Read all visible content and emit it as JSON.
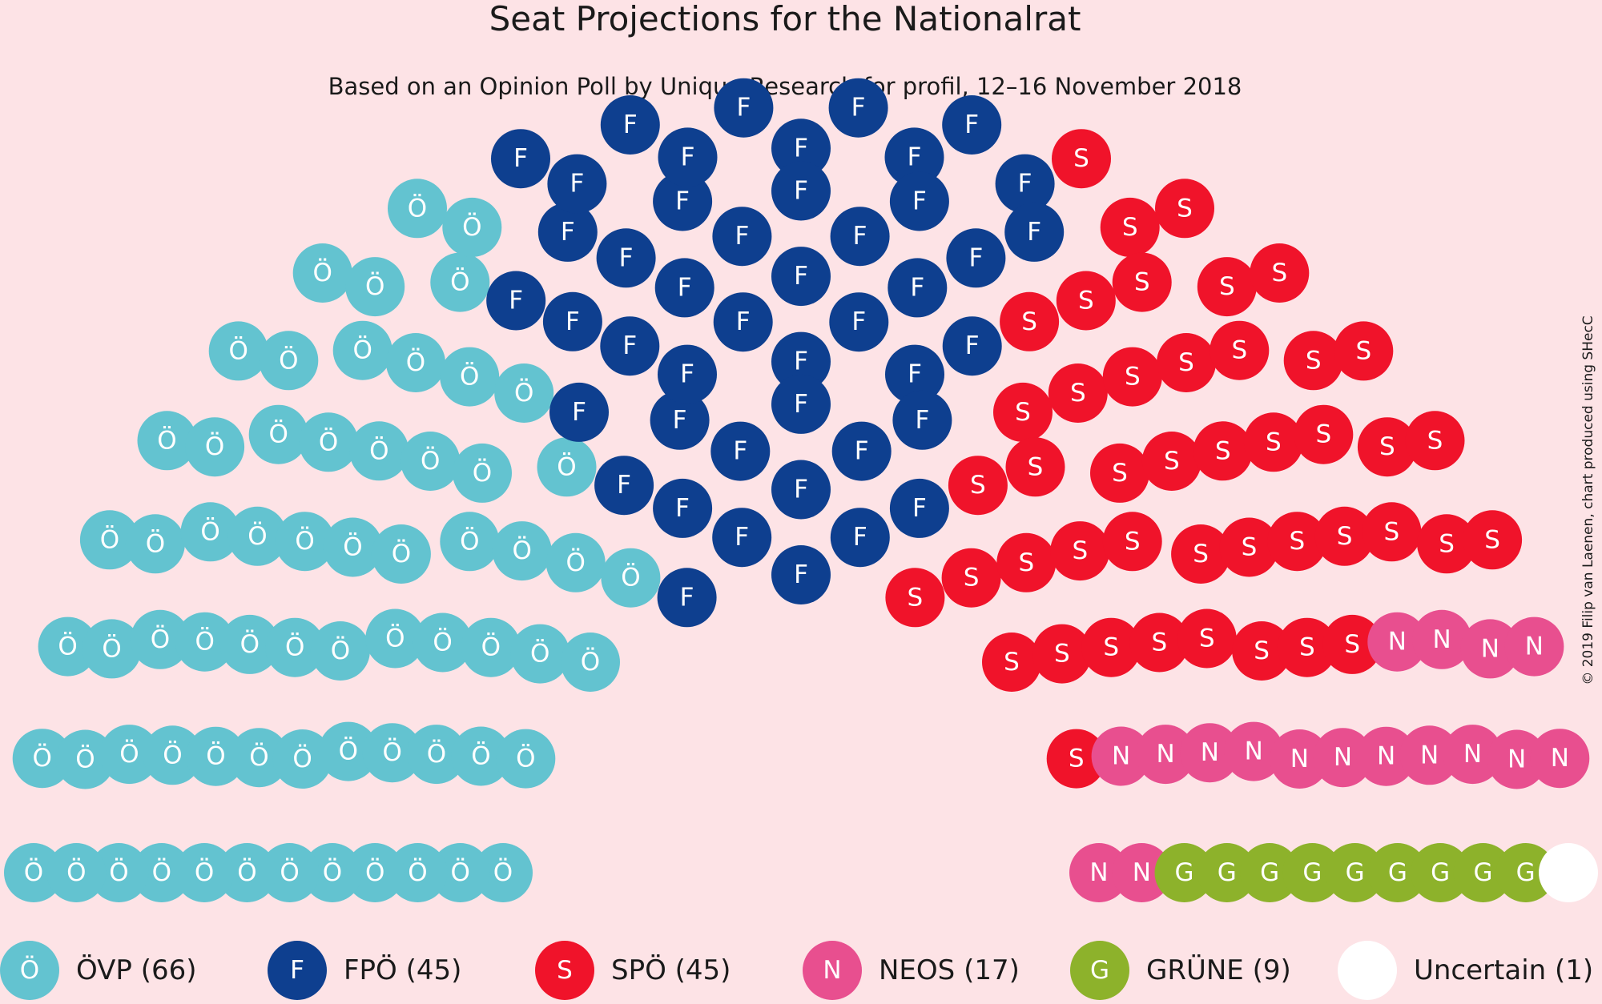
{
  "chart_data": {
    "type": "parliament",
    "title": "Seat Projections for the Nationalrat",
    "subtitle": "Based on an Opinion Poll by Unique Research for profil, 12–16 November 2018",
    "credit": "© 2019 Filip van Laenen, chart produced using SHecC",
    "total_seats": 183,
    "background_color": "#fde3e6",
    "parties": [
      {
        "letter": "Ö",
        "name": "ÖVP",
        "seats": 66,
        "color": "#63c3d0",
        "legend_label": "ÖVP (66)"
      },
      {
        "letter": "F",
        "name": "FPÖ",
        "seats": 45,
        "color": "#0e3f8f",
        "legend_label": "FPÖ (45)"
      },
      {
        "letter": "S",
        "name": "SPÖ",
        "seats": 45,
        "color": "#f0132a",
        "legend_label": "SPÖ (45)"
      },
      {
        "letter": "N",
        "name": "NEOS",
        "seats": 17,
        "color": "#e84f8f",
        "legend_label": "NEOS (17)"
      },
      {
        "letter": "G",
        "name": "GRÜNE",
        "seats": 9,
        "color": "#8db22b",
        "legend_label": "GRÜNE (9)"
      },
      {
        "letter": "",
        "name": "Uncertain",
        "seats": 1,
        "color": "#ffffff",
        "legend_label": "Uncertain (1)"
      }
    ],
    "legend_placement": "bottom"
  }
}
